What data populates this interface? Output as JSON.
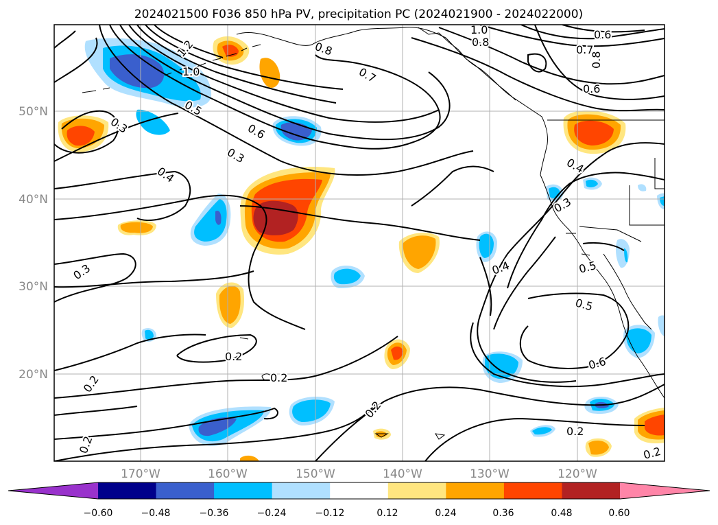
{
  "title": "2024021500 F036 850 hPa PV, precipitation PC (2024021900 - 2024022000)",
  "lat_labels": [
    "50°N",
    "40°N",
    "30°N",
    "20°N"
  ],
  "lon_labels": [
    "170°W",
    "160°W",
    "150°W",
    "140°W",
    "130°W",
    "120°W"
  ],
  "contour_labels": [
    "1.0",
    "0.6",
    "0.8",
    "0.7",
    "0.8",
    "1.2",
    "1.0",
    "0.8",
    "0.7",
    "0.6",
    "0.5",
    "0.6",
    "0.3",
    "0.3",
    "0.4",
    "0.4",
    "0.3",
    "0.3",
    "0.5",
    "0.4",
    "0.5",
    "0.6",
    "0.2",
    "0.2",
    "0.2",
    "0.2",
    "0.2",
    "0.2",
    "0.2"
  ],
  "colorbar": {
    "ticks": [
      "−0.60",
      "−0.48",
      "−0.36",
      "−0.24",
      "−0.12",
      "0.12",
      "0.24",
      "0.36",
      "0.48",
      "0.60"
    ],
    "colors": [
      "#9932cc",
      "#00008b",
      "#3a5fcd",
      "#00bfff",
      "#b0e0ff",
      "#ffffff",
      "#ffe680",
      "#ffa500",
      "#ff4500",
      "#b22222",
      "#ff85a8"
    ]
  },
  "palette": {
    "neg_light": "#b0e0ff",
    "neg_mid": "#00bfff",
    "neg_strong": "#3a5fcd",
    "neg_deep": "#00008b",
    "pos_light": "#ffe680",
    "pos_mid": "#ffa500",
    "pos_strong": "#ff4500",
    "pos_deep": "#b22222",
    "grid": "#b0b0b0",
    "contour": "#000000"
  }
}
